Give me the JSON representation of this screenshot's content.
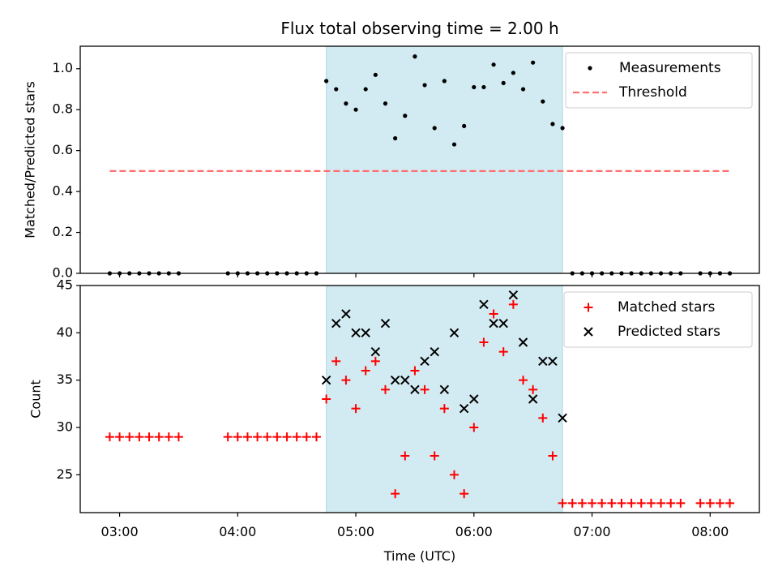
{
  "colors": {
    "shade": "#add8e6",
    "measurement": "#000000",
    "threshold": "#ff6f6f",
    "matched": "#ff0000",
    "predicted": "#000000"
  },
  "chart_data": {
    "title": "Flux total observing time = 2.00 h",
    "xlabel": "Time (UTC)",
    "xlim": [
      "02:40",
      "08:25"
    ],
    "x_ticks": [
      "03:00",
      "04:00",
      "05:00",
      "06:00",
      "07:00",
      "08:00"
    ],
    "shaded_interval": [
      "04:45",
      "06:45"
    ],
    "panels": [
      {
        "type": "scatter",
        "ylabel": "Matched/Predicted stars",
        "ylim": [
          0,
          1.11
        ],
        "y_ticks": [
          "0.0",
          "0.2",
          "0.4",
          "0.6",
          "0.8",
          "1.0"
        ],
        "legend": "top-right",
        "series": [
          {
            "name": "Measurements",
            "marker": "dot",
            "x": [
              "02:55",
              "03:00",
              "03:05",
              "03:10",
              "03:15",
              "03:20",
              "03:25",
              "03:30",
              "03:55",
              "04:00",
              "04:05",
              "04:10",
              "04:15",
              "04:20",
              "04:25",
              "04:30",
              "04:35",
              "04:40",
              "04:45",
              "04:50",
              "04:55",
              "05:00",
              "05:05",
              "05:10",
              "05:15",
              "05:20",
              "05:25",
              "05:30",
              "05:35",
              "05:40",
              "05:45",
              "05:50",
              "05:55",
              "06:00",
              "06:05",
              "06:10",
              "06:15",
              "06:20",
              "06:25",
              "06:30",
              "06:35",
              "06:40",
              "06:45",
              "06:50",
              "06:55",
              "07:00",
              "07:05",
              "07:10",
              "07:15",
              "07:20",
              "07:25",
              "07:30",
              "07:35",
              "07:40",
              "07:45",
              "07:55",
              "08:00",
              "08:05",
              "08:10"
            ],
            "y": [
              0,
              0,
              0,
              0,
              0,
              0,
              0,
              0,
              0,
              0,
              0,
              0,
              0,
              0,
              0,
              0,
              0,
              0,
              0.94,
              0.9,
              0.83,
              0.8,
              0.9,
              0.97,
              0.83,
              0.66,
              0.77,
              1.06,
              0.92,
              0.71,
              0.94,
              0.63,
              0.72,
              0.91,
              0.91,
              1.02,
              0.93,
              0.98,
              0.9,
              1.03,
              0.84,
              0.73,
              0.71,
              0,
              0,
              0,
              0,
              0,
              0,
              0,
              0,
              0,
              0,
              0,
              0,
              0,
              0,
              0,
              0
            ]
          },
          {
            "name": "Threshold",
            "marker": "dashed-line",
            "x": [
              "02:55",
              "08:10"
            ],
            "y": [
              0.5,
              0.5
            ]
          }
        ]
      },
      {
        "type": "scatter",
        "ylabel": "Count",
        "ylim": [
          21,
          45
        ],
        "y_ticks": [
          "25",
          "30",
          "35",
          "40",
          "45"
        ],
        "legend": "top-right",
        "series": [
          {
            "name": "Matched stars",
            "marker": "plus",
            "x": [
              "02:55",
              "03:00",
              "03:05",
              "03:10",
              "03:15",
              "03:20",
              "03:25",
              "03:30",
              "03:55",
              "04:00",
              "04:05",
              "04:10",
              "04:15",
              "04:20",
              "04:25",
              "04:30",
              "04:35",
              "04:40",
              "04:45",
              "04:50",
              "04:55",
              "05:00",
              "05:05",
              "05:10",
              "05:15",
              "05:20",
              "05:25",
              "05:30",
              "05:35",
              "05:40",
              "05:45",
              "05:50",
              "05:55",
              "06:00",
              "06:05",
              "06:10",
              "06:15",
              "06:20",
              "06:25",
              "06:30",
              "06:35",
              "06:40",
              "06:45",
              "06:50",
              "06:55",
              "07:00",
              "07:05",
              "07:10",
              "07:15",
              "07:20",
              "07:25",
              "07:30",
              "07:35",
              "07:40",
              "07:45",
              "07:55",
              "08:00",
              "08:05",
              "08:10"
            ],
            "y": [
              29,
              29,
              29,
              29,
              29,
              29,
              29,
              29,
              29,
              29,
              29,
              29,
              29,
              29,
              29,
              29,
              29,
              29,
              33,
              37,
              35,
              32,
              36,
              37,
              34,
              23,
              27,
              36,
              34,
              27,
              32,
              25,
              23,
              30,
              39,
              42,
              38,
              43,
              35,
              34,
              31,
              27,
              22,
              22,
              22,
              22,
              22,
              22,
              22,
              22,
              22,
              22,
              22,
              22,
              22,
              22,
              22,
              22,
              22
            ]
          },
          {
            "name": "Predicted stars",
            "marker": "x",
            "x": [
              "04:45",
              "04:50",
              "04:55",
              "05:00",
              "05:05",
              "05:10",
              "05:15",
              "05:20",
              "05:25",
              "05:30",
              "05:35",
              "05:40",
              "05:45",
              "05:50",
              "05:55",
              "06:00",
              "06:05",
              "06:10",
              "06:15",
              "06:20",
              "06:25",
              "06:30",
              "06:35",
              "06:40",
              "06:45"
            ],
            "y": [
              35,
              41,
              42,
              40,
              40,
              38,
              41,
              35,
              35,
              34,
              37,
              38,
              34,
              40,
              32,
              33,
              43,
              41,
              41,
              44,
              39,
              33,
              37,
              37,
              31
            ]
          }
        ]
      }
    ]
  }
}
